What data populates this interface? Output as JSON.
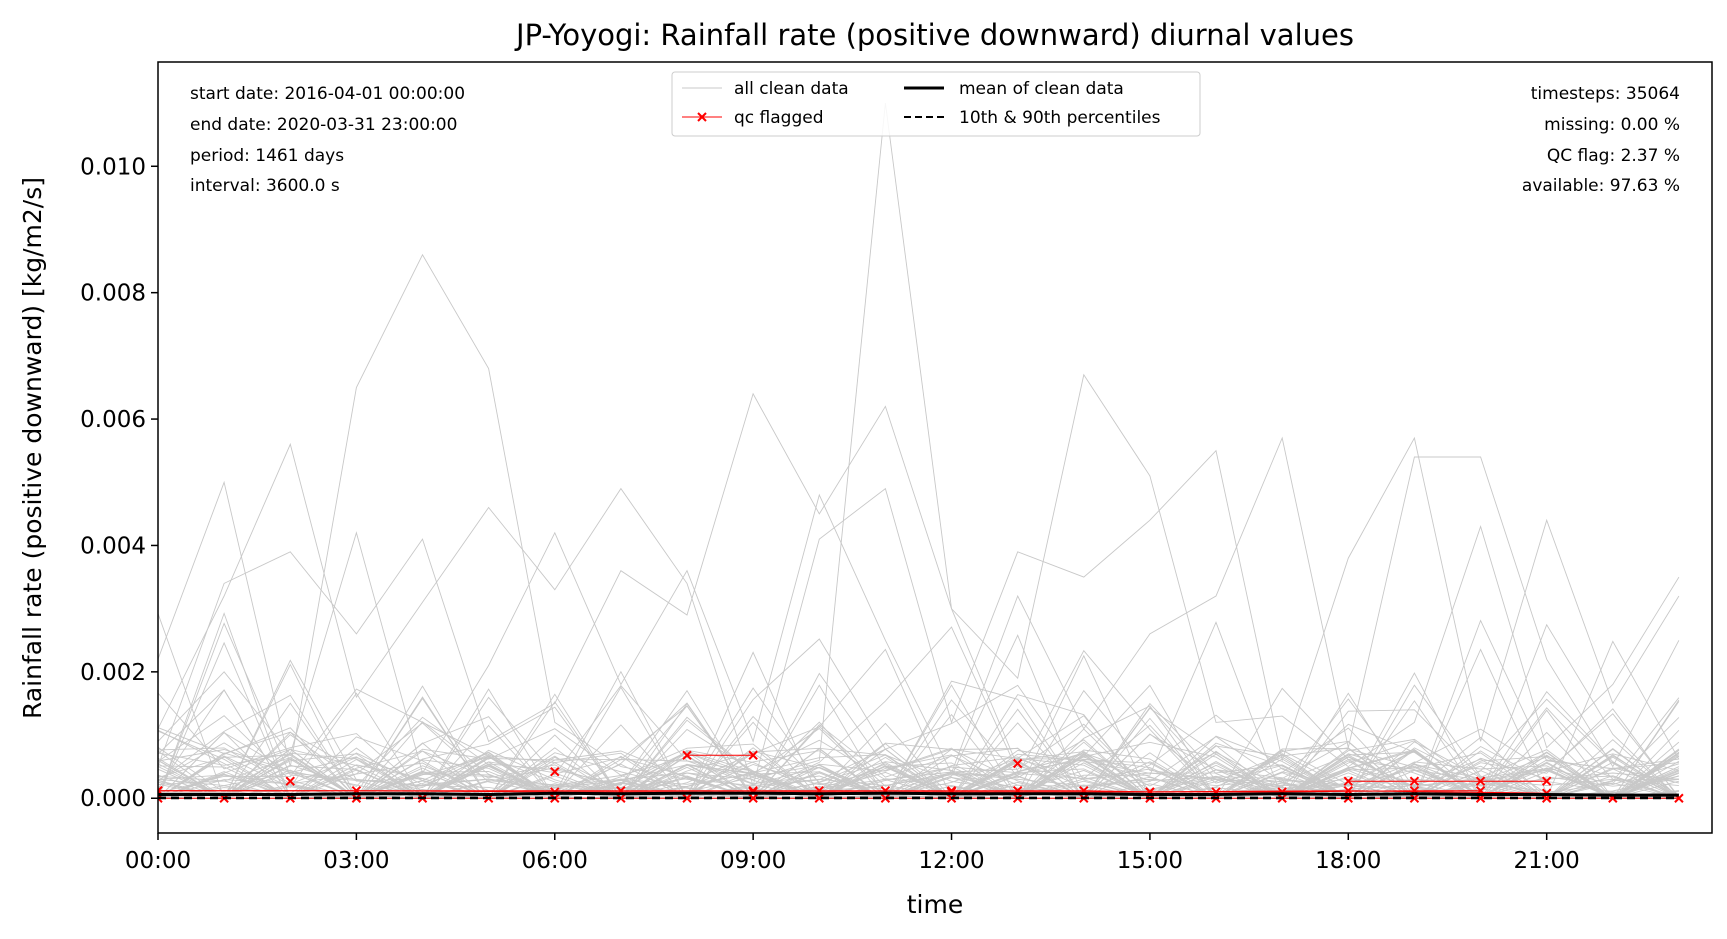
{
  "chart_data": {
    "type": "line",
    "title": "JP-Yoyogi: Rainfall rate (positive downward) diurnal values",
    "xlabel": "time",
    "ylabel": "Rainfall rate (positive downward) [kg/m2/s]",
    "xlim": [
      0,
      23.5
    ],
    "ylim": [
      -0.00055,
      0.01165
    ],
    "x_ticks": [
      0,
      3,
      6,
      9,
      12,
      15,
      18,
      21
    ],
    "x_tick_labels": [
      "00:00",
      "03:00",
      "06:00",
      "09:00",
      "12:00",
      "15:00",
      "18:00",
      "21:00"
    ],
    "y_ticks": [
      0,
      0.002,
      0.004,
      0.006,
      0.008,
      0.01
    ],
    "y_tick_labels": [
      "0.000",
      "0.002",
      "0.004",
      "0.006",
      "0.008",
      "0.010"
    ],
    "grid": false,
    "legend_position": "top-center",
    "legend": {
      "all_clean": "all clean data",
      "qc_flagged": "qc flagged",
      "mean": "mean of clean data",
      "percentiles": "10th & 90th percentiles"
    },
    "stats_left": [
      "start date: 2016-04-01 00:00:00",
      "end date: 2020-03-31 23:00:00",
      "period: 1461 days",
      "interval: 3600.0 s"
    ],
    "stats_right": [
      "timesteps: 35064",
      "missing: 0.00 %",
      "QC flag: 2.37 %",
      "available: 97.63 %"
    ],
    "x_hours": [
      0,
      1,
      2,
      3,
      4,
      5,
      6,
      7,
      8,
      9,
      10,
      11,
      12,
      13,
      14,
      15,
      16,
      17,
      18,
      19,
      20,
      21,
      22,
      23
    ],
    "clean_series_highlight": [
      [
        0.0022,
        0.005,
        0.0005,
        0.0065,
        0.0086,
        0.0068,
        0.0012,
        0.0005,
        0.0003,
        0.0002,
        0.0003,
        0.0002,
        0.0004,
        0.0003,
        0.0002,
        0.0003,
        0.0002,
        0.0003,
        0.0002,
        0.0003,
        0.0002,
        0.0003,
        0.0004,
        0.0003
      ],
      [
        0.0003,
        0.0002,
        0.0004,
        0.0003,
        0.0002,
        0.0003,
        0.0002,
        0.0003,
        0.0004,
        0.0003,
        0.0006,
        0.011,
        0.003,
        0.0005,
        0.0003,
        0.0004,
        0.0003,
        0.0002,
        0.0003,
        0.0002,
        0.0003,
        0.0002,
        0.0003,
        0.0002
      ],
      [
        0.0005,
        0.0034,
        0.0039,
        0.0026,
        0.0041,
        0.0009,
        0.0015,
        0.0036,
        0.0029,
        0.0064,
        0.0045,
        0.0062,
        0.003,
        0.0019,
        0.0067,
        0.0051,
        0.0012,
        0.0013,
        0.0005,
        0.0012,
        0.0043,
        0.0008,
        0.0018,
        0.0035
      ],
      [
        0.0011,
        0.0032,
        0.0056,
        0.0016,
        0.0031,
        0.0046,
        0.0033,
        0.0049,
        0.0034,
        0.0002,
        0.0041,
        0.0049,
        0.0012,
        0.0039,
        0.0035,
        0.0044,
        0.0055,
        0.0006,
        0.0038,
        0.0057,
        0.0009,
        0.0044,
        0.0015,
        0.0032
      ],
      [
        0.0009,
        0.002,
        0.0007,
        0.0042,
        0.0004,
        0.0021,
        0.0042,
        0.0018,
        0.0036,
        0.0009,
        0.0048,
        0.0025,
        0.0004,
        0.0032,
        0.0011,
        0.0026,
        0.0032,
        0.0057,
        0.0008,
        0.0054,
        0.0054,
        0.0022,
        0.0005,
        0.0025
      ]
    ],
    "mean_values": [
      6e-05,
      6e-05,
      6e-05,
      7e-05,
      7e-05,
      6e-05,
      8e-05,
      7e-05,
      8e-05,
      8e-05,
      7e-05,
      8e-05,
      7e-05,
      7e-05,
      7e-05,
      6e-05,
      6e-05,
      7e-05,
      6e-05,
      7e-05,
      6e-05,
      6e-05,
      5e-05,
      5e-05
    ],
    "p10_values": [
      0,
      0,
      0,
      0,
      0,
      0,
      0,
      0,
      0,
      0,
      0,
      0,
      0,
      0,
      0,
      0,
      0,
      0,
      0,
      0,
      0,
      0,
      0,
      0
    ],
    "p90_values": [
      1e-05,
      1e-05,
      1e-05,
      1e-05,
      1e-05,
      1e-05,
      1e-05,
      1e-05,
      1e-05,
      1e-05,
      1e-05,
      1e-05,
      1e-05,
      1e-05,
      1e-05,
      1e-05,
      1e-05,
      1e-05,
      1e-05,
      1e-05,
      1e-05,
      1e-05,
      1e-05,
      1e-05
    ],
    "qc_flagged_segments": [
      [
        [
          0,
          0.00012
        ],
        [
          3,
          0.00012
        ],
        [
          6,
          0.0001
        ],
        [
          9,
          0.0001
        ],
        [
          12,
          0.0001
        ],
        [
          15,
          0.0001
        ],
        [
          18,
          0.00012
        ],
        [
          21,
          8e-05
        ]
      ],
      [
        [
          8,
          0.00068
        ],
        [
          9,
          0.00068
        ]
      ],
      [
        [
          18,
          0.00027
        ],
        [
          19,
          0.00027
        ],
        [
          20,
          0.00027
        ],
        [
          21,
          0.00027
        ]
      ],
      [
        [
          13,
          0.00055
        ]
      ],
      [
        [
          6,
          0.00042
        ]
      ],
      [
        [
          2,
          0.00027
        ]
      ],
      [
        [
          0,
          0
        ],
        [
          1,
          0
        ],
        [
          2,
          0
        ],
        [
          3,
          0
        ],
        [
          4,
          0
        ],
        [
          5,
          0
        ],
        [
          6,
          0
        ],
        [
          7,
          0
        ],
        [
          8,
          0
        ],
        [
          9,
          0
        ],
        [
          10,
          0
        ],
        [
          11,
          0
        ],
        [
          12,
          0
        ],
        [
          13,
          0
        ],
        [
          14,
          0
        ],
        [
          15,
          0
        ],
        [
          16,
          0
        ],
        [
          17,
          0
        ],
        [
          18,
          0
        ],
        [
          19,
          0
        ],
        [
          20,
          0
        ],
        [
          21,
          0
        ],
        [
          22,
          0
        ],
        [
          23,
          0
        ]
      ],
      [
        [
          0,
          0.00012
        ],
        [
          7,
          0.00012
        ],
        [
          9,
          0.00012
        ],
        [
          10,
          0.00012
        ],
        [
          11,
          0.00012
        ],
        [
          12,
          0.00012
        ],
        [
          13,
          0.00012
        ],
        [
          14,
          0.00012
        ],
        [
          15,
          0.0001
        ],
        [
          16,
          0.0001
        ],
        [
          17,
          0.0001
        ],
        [
          19,
          0.00012
        ],
        [
          20,
          0.00012
        ]
      ]
    ],
    "colors": {
      "clean": "#c8c8c8",
      "qc": "#ff0000",
      "mean": "#000000",
      "percentile": "#000000"
    }
  }
}
